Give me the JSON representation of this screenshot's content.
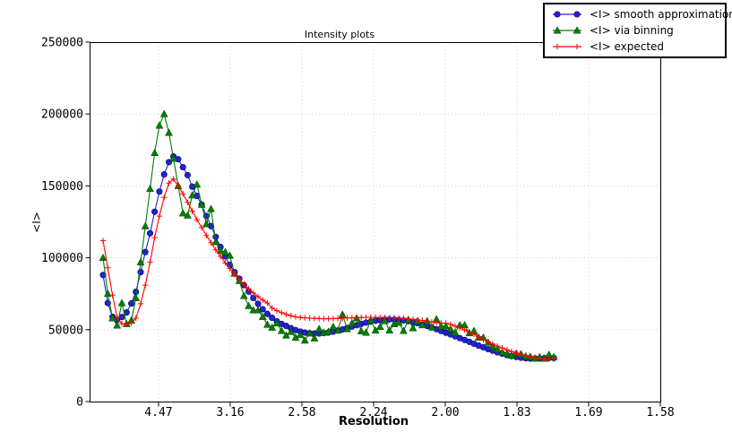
{
  "chart_data": {
    "type": "line",
    "title": "Intensity plots",
    "xlabel": "Resolution",
    "ylabel": "<I>",
    "grid": true,
    "grid_color": "#cccccc",
    "legend_position": "top-right",
    "x_axis": {
      "note": "x coordinate is 1/d^2; tick labels show resolution d",
      "range": [
        0.0019,
        0.4
      ],
      "ticks": [
        {
          "s": 0.05,
          "label": "4.47"
        },
        {
          "s": 0.1,
          "label": "3.16"
        },
        {
          "s": 0.15,
          "label": "2.58"
        },
        {
          "s": 0.2,
          "label": "2.24"
        },
        {
          "s": 0.25,
          "label": "2.00"
        },
        {
          "s": 0.3,
          "label": "1.83"
        },
        {
          "s": 0.35,
          "label": "1.69"
        },
        {
          "s": 0.4,
          "label": "1.58"
        }
      ]
    },
    "y_axis": {
      "range": [
        0,
        250000
      ],
      "ticks": [
        {
          "v": 0,
          "label": "0"
        },
        {
          "v": 50000,
          "label": "50000"
        },
        {
          "v": 100000,
          "label": "100000"
        },
        {
          "v": 150000,
          "label": "150000"
        },
        {
          "v": 200000,
          "label": "200000"
        },
        {
          "v": 250000,
          "label": "250000"
        }
      ]
    },
    "x": [
      0.0113,
      0.0146,
      0.0179,
      0.0211,
      0.0244,
      0.0277,
      0.031,
      0.0342,
      0.0375,
      0.0408,
      0.0441,
      0.0473,
      0.0506,
      0.0539,
      0.0572,
      0.0604,
      0.0637,
      0.067,
      0.0703,
      0.0735,
      0.0768,
      0.0801,
      0.0834,
      0.0866,
      0.0899,
      0.0932,
      0.0965,
      0.0997,
      0.103,
      0.1063,
      0.1096,
      0.1128,
      0.1161,
      0.1194,
      0.1227,
      0.1259,
      0.1292,
      0.1325,
      0.1358,
      0.139,
      0.1423,
      0.1456,
      0.1489,
      0.1521,
      0.1554,
      0.1587,
      0.162,
      0.1652,
      0.1685,
      0.1718,
      0.1751,
      0.1783,
      0.1816,
      0.1849,
      0.1882,
      0.1914,
      0.1947,
      0.198,
      0.2013,
      0.2045,
      0.2078,
      0.2111,
      0.2144,
      0.2176,
      0.2209,
      0.2242,
      0.2275,
      0.2307,
      0.234,
      0.2373,
      0.2406,
      0.2438,
      0.2471,
      0.2504,
      0.2537,
      0.2569,
      0.2602,
      0.2635,
      0.2668,
      0.27,
      0.2733,
      0.2766,
      0.2799,
      0.2831,
      0.2864,
      0.2897,
      0.293,
      0.2962,
      0.2995,
      0.3028,
      0.3061,
      0.3093,
      0.3126,
      0.3159,
      0.3192,
      0.3224,
      0.3257
    ],
    "series": [
      {
        "name": "<I> smooth approximation",
        "color": "#2424cc",
        "edge": "#000080",
        "marker": "circle",
        "values": [
          88000,
          68500,
          59000,
          56800,
          58800,
          62000,
          68200,
          76300,
          90000,
          104000,
          117000,
          132000,
          146000,
          158000,
          166500,
          170500,
          168500,
          163000,
          157500,
          149500,
          143000,
          137000,
          129000,
          122000,
          114500,
          107500,
          101000,
          95000,
          90000,
          85500,
          81000,
          76500,
          72000,
          68000,
          64200,
          61000,
          58200,
          55800,
          54000,
          52600,
          51000,
          49700,
          48700,
          48000,
          47500,
          47300,
          47300,
          47600,
          48000,
          48600,
          49400,
          50200,
          51200,
          52100,
          53100,
          54000,
          54900,
          55600,
          56200,
          56700,
          57000,
          57100,
          57000,
          56800,
          56400,
          55900,
          55300,
          54500,
          53600,
          52600,
          51500,
          50300,
          49100,
          47900,
          46700,
          45400,
          44100,
          42800,
          41500,
          40200,
          38900,
          37700,
          36500,
          35400,
          34300,
          33300,
          32400,
          31600,
          31000,
          30500,
          30100,
          29900,
          29900,
          30000,
          30200,
          30400,
          30300
        ]
      },
      {
        "name": "<I> via binning",
        "color": "#007f00",
        "edge": "#004000",
        "marker": "triangle",
        "values": [
          100000,
          75000,
          58000,
          53000,
          68500,
          54000,
          56500,
          72000,
          97000,
          122000,
          148000,
          173000,
          192000,
          200000,
          187000,
          169000,
          150000,
          131000,
          129500,
          143500,
          151000,
          137000,
          123500,
          134000,
          111000,
          105000,
          104000,
          101500,
          89000,
          84000,
          73500,
          66500,
          63600,
          63500,
          59000,
          53500,
          51500,
          54500,
          49200,
          46000,
          48500,
          44500,
          46500,
          42500,
          47500,
          44000,
          50500,
          48000,
          48600,
          52000,
          49500,
          60500,
          50500,
          54500,
          58000,
          49000,
          48000,
          56700,
          49500,
          52000,
          56100,
          49500,
          54000,
          54900,
          49200,
          56900,
          51100,
          56100,
          53200,
          56000,
          51700,
          57300,
          52400,
          52400,
          50500,
          48000,
          53200,
          53200,
          47600,
          49200,
          44500,
          44500,
          41000,
          38200,
          36500,
          34300,
          33500,
          32000,
          33500,
          33000,
          31500,
          31200,
          30000,
          31000,
          29900,
          32600,
          31000
        ]
      },
      {
        "name": "<I> expected",
        "color": "#ff0000",
        "edge": "#ff0000",
        "marker": "plus",
        "values": [
          112000,
          93000,
          74000,
          58500,
          54200,
          53800,
          54500,
          58000,
          68000,
          81000,
          97000,
          114000,
          129000,
          142000,
          152000,
          154800,
          150000,
          144500,
          138500,
          132500,
          126500,
          121000,
          115500,
          110500,
          105500,
          101000,
          96500,
          92500,
          88500,
          85000,
          81500,
          78500,
          75500,
          73000,
          70500,
          68500,
          65000,
          63200,
          61800,
          60600,
          59700,
          59000,
          58500,
          58200,
          58000,
          57800,
          57700,
          57600,
          57600,
          57700,
          57800,
          58000,
          58100,
          58200,
          58400,
          58500,
          58600,
          58600,
          58600,
          58500,
          58400,
          58300,
          58200,
          58000,
          57800,
          57500,
          57200,
          56800,
          56400,
          55900,
          55400,
          54900,
          54700,
          54500,
          53600,
          52500,
          51200,
          49800,
          48300,
          46800,
          45200,
          43000,
          41500,
          40000,
          38600,
          37200,
          36000,
          34800,
          33700,
          32800,
          32000,
          31300,
          30700,
          30200,
          29900,
          29700,
          29600
        ]
      }
    ]
  }
}
